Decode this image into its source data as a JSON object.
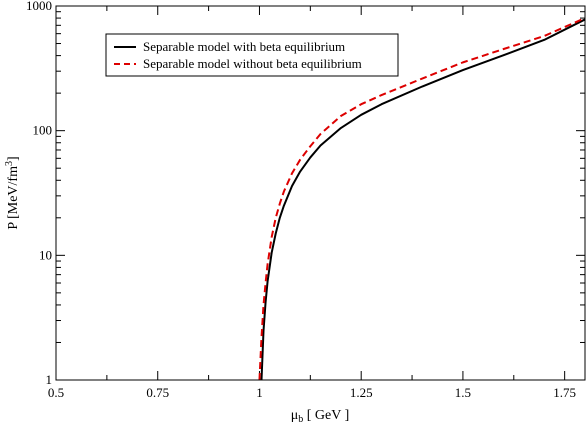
{
  "chart_data": {
    "type": "line",
    "title": "",
    "xlabel": "μ",
    "xlabel_sub": "b",
    "xlabel_unit": " [ GeV ]",
    "ylabel": "P [MeV/fm",
    "ylabel_sup": "3",
    "ylabel_close": "]",
    "xlim": [
      0.5,
      1.8
    ],
    "ylim": [
      1,
      1000
    ],
    "yscale": "log",
    "grid": false,
    "legend_position": "top-left",
    "x_ticks": [
      0.5,
      0.75,
      1,
      1.25,
      1.5,
      1.75
    ],
    "x_tick_labels": [
      "0.5",
      "0.75",
      "1",
      "1.25",
      "1.5",
      "1.75"
    ],
    "y_ticks": [
      1,
      10,
      100,
      1000
    ],
    "y_tick_labels": [
      "1",
      "10",
      "100",
      "1000"
    ],
    "series": [
      {
        "name": "Separable model with beta equilibrium",
        "color": "#000000",
        "dash": "solid",
        "x": [
          1.005,
          1.01,
          1.015,
          1.02,
          1.03,
          1.04,
          1.05,
          1.06,
          1.08,
          1.1,
          1.125,
          1.15,
          1.2,
          1.25,
          1.3,
          1.4,
          1.5,
          1.6,
          1.7,
          1.8
        ],
        "y": [
          1,
          2.5,
          4.2,
          6.2,
          10.5,
          15,
          20,
          25,
          36,
          47,
          61,
          76,
          105,
          134,
          163,
          226,
          306,
          403,
          535,
          780
        ]
      },
      {
        "name": "Separable model without beta equilibrium",
        "color": "#dd0000",
        "dash": "dashed",
        "x": [
          1.0,
          1.005,
          1.01,
          1.015,
          1.02,
          1.03,
          1.04,
          1.05,
          1.06,
          1.08,
          1.1,
          1.125,
          1.15,
          1.2,
          1.25,
          1.3,
          1.4,
          1.5,
          1.6,
          1.7,
          1.8
        ],
        "y": [
          1,
          2.2,
          4,
          6,
          8.5,
          14,
          20,
          26,
          32.5,
          45.5,
          58.5,
          75,
          94,
          131,
          163,
          193,
          262,
          353,
          452,
          575,
          800
        ]
      }
    ]
  }
}
